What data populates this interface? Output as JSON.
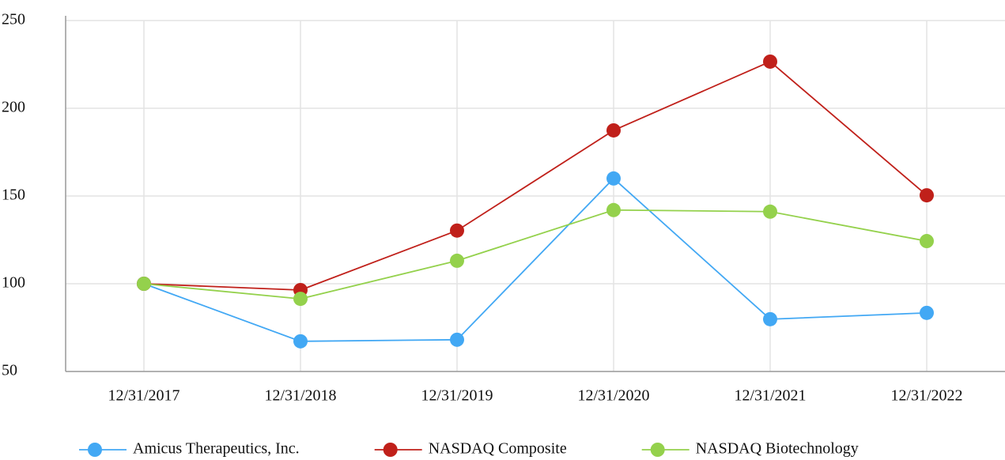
{
  "chart_data": {
    "type": "line",
    "categories": [
      "12/31/2017",
      "12/31/2018",
      "12/31/2019",
      "12/31/2020",
      "12/31/2021",
      "12/31/2022"
    ],
    "series": [
      {
        "name": "Amicus Therapeutics, Inc.",
        "color": "#42a8f4",
        "values": [
          100,
          67.2,
          68.1,
          160,
          79.8,
          83.4
        ]
      },
      {
        "name": "NASDAQ Composite",
        "color": "#c0201a",
        "values": [
          100,
          96.4,
          130.3,
          187.4,
          226.6,
          150.4
        ]
      },
      {
        "name": "NASDAQ Biotechnology",
        "color": "#94d14c",
        "values": [
          100,
          91.4,
          113.1,
          142,
          141.1,
          124.3
        ]
      }
    ],
    "ylim": [
      50,
      250
    ],
    "yticks": [
      50,
      100,
      150,
      200,
      250
    ],
    "grid": true,
    "legend": "bottom"
  }
}
